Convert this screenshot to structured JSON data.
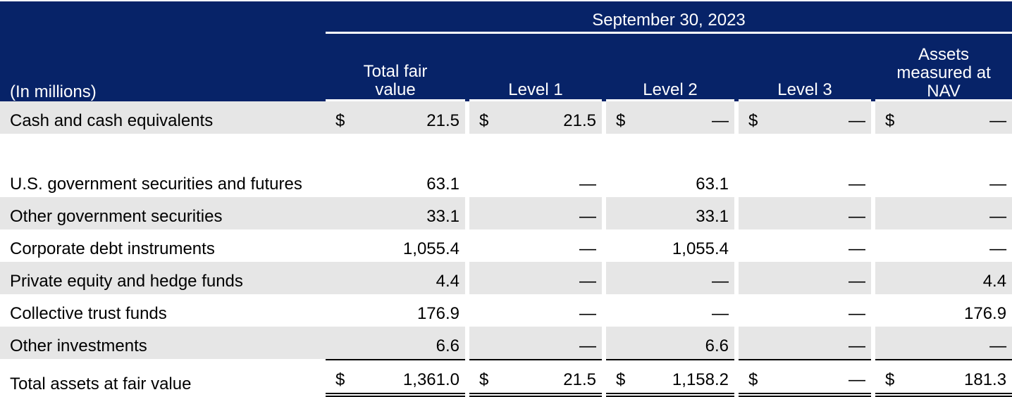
{
  "header": {
    "date": "September 30, 2023",
    "label_col": "(In millions)",
    "columns": [
      "Total fair\nvalue",
      "Level 1",
      "Level 2",
      "Level 3",
      "Assets\nmeasured at\nNAV"
    ]
  },
  "rows": [
    {
      "label": "Cash and cash equivalents",
      "cells": [
        [
          "$",
          "21.5"
        ],
        [
          "$",
          "21.5"
        ],
        [
          "$",
          "—"
        ],
        [
          "$",
          "—"
        ],
        [
          "$",
          "—"
        ]
      ]
    },
    {
      "label": "U.S. government securities and futures",
      "cells": [
        [
          "",
          "63.1"
        ],
        [
          "",
          "—"
        ],
        [
          "",
          "63.1"
        ],
        [
          "",
          "—"
        ],
        [
          "",
          "—"
        ]
      ]
    },
    {
      "label": "Other government securities",
      "cells": [
        [
          "",
          "33.1"
        ],
        [
          "",
          "—"
        ],
        [
          "",
          "33.1"
        ],
        [
          "",
          "—"
        ],
        [
          "",
          "—"
        ]
      ]
    },
    {
      "label": "Corporate debt instruments",
      "cells": [
        [
          "",
          "1,055.4"
        ],
        [
          "",
          "—"
        ],
        [
          "",
          "1,055.4"
        ],
        [
          "",
          "—"
        ],
        [
          "",
          "—"
        ]
      ]
    },
    {
      "label": "Private equity and hedge funds",
      "cells": [
        [
          "",
          "4.4"
        ],
        [
          "",
          "—"
        ],
        [
          "",
          "—"
        ],
        [
          "",
          "—"
        ],
        [
          "",
          "4.4"
        ]
      ]
    },
    {
      "label": "Collective trust funds",
      "cells": [
        [
          "",
          "176.9"
        ],
        [
          "",
          "—"
        ],
        [
          "",
          "—"
        ],
        [
          "",
          "—"
        ],
        [
          "",
          "176.9"
        ]
      ]
    },
    {
      "label": "Other investments",
      "cells": [
        [
          "",
          "6.6"
        ],
        [
          "",
          "—"
        ],
        [
          "",
          "6.6"
        ],
        [
          "",
          "—"
        ],
        [
          "",
          "—"
        ]
      ]
    },
    {
      "label": "Total assets at fair value",
      "cells": [
        [
          "$",
          "1,361.0"
        ],
        [
          "$",
          "21.5"
        ],
        [
          "$",
          "1,158.2"
        ],
        [
          "$",
          "—"
        ],
        [
          "$",
          "181.3"
        ]
      ]
    }
  ]
}
